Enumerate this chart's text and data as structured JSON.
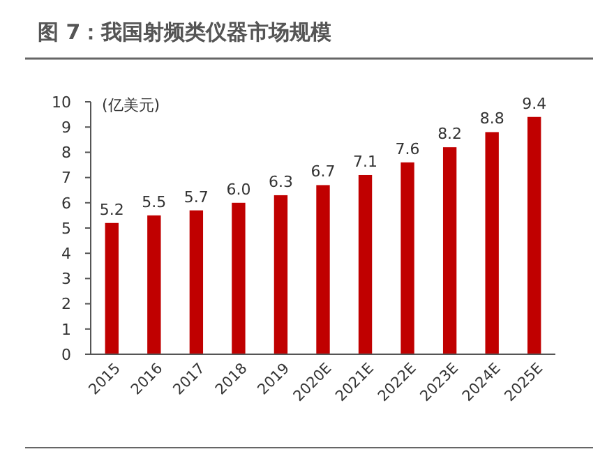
{
  "chart_data": {
    "type": "bar",
    "title": "图 7：我国射频类仪器市场规模",
    "ylabel": "(亿美元)",
    "categories": [
      "2015",
      "2016",
      "2017",
      "2018",
      "2019",
      "2020E",
      "2021E",
      "2022E",
      "2023E",
      "2024E",
      "2025E"
    ],
    "values": [
      5.2,
      5.5,
      5.7,
      6.0,
      6.3,
      6.7,
      7.1,
      7.6,
      8.2,
      8.8,
      9.4
    ],
    "value_labels": [
      "5.2",
      "5.5",
      "5.7",
      "6.0",
      "6.3",
      "6.7",
      "7.1",
      "7.6",
      "8.2",
      "8.8",
      "9.4"
    ],
    "color": "#c00000",
    "ylim": [
      0,
      10
    ],
    "yticks": [
      0,
      1,
      2,
      3,
      4,
      5,
      6,
      7,
      8,
      9,
      10
    ],
    "grid": false
  }
}
